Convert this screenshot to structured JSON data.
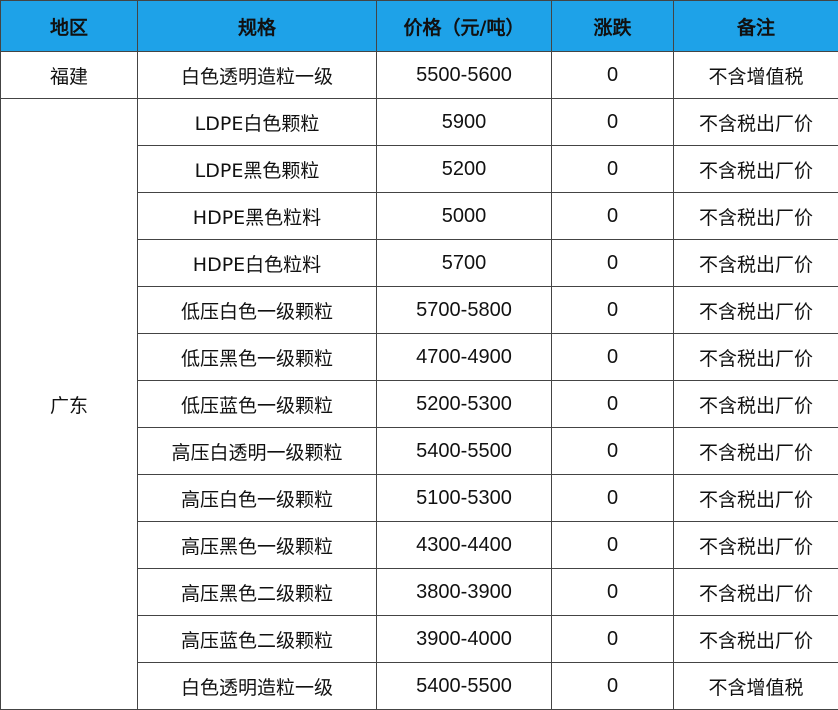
{
  "table": {
    "headers": [
      "地区",
      "规格",
      "价格（元/吨）",
      "涨跌",
      "备注"
    ],
    "groups": [
      {
        "region": "福建",
        "rows": [
          [
            "白色透明造粒一级",
            "5500-5600",
            0,
            "不含增值税"
          ]
        ]
      },
      {
        "region": "广东",
        "rows": [
          [
            "LDPE白色颗粒",
            "5900",
            0,
            "不含税出厂价"
          ],
          [
            "LDPE黑色颗粒",
            "5200",
            0,
            "不含税出厂价"
          ],
          [
            "HDPE黑色粒料",
            "5000",
            0,
            "不含税出厂价"
          ],
          [
            "HDPE白色粒料",
            "5700",
            0,
            "不含税出厂价"
          ],
          [
            "低压白色一级颗粒",
            "5700-5800",
            0,
            "不含税出厂价"
          ],
          [
            "低压黑色一级颗粒",
            "4700-4900",
            0,
            "不含税出厂价"
          ],
          [
            "低压蓝色一级颗粒",
            "5200-5300",
            0,
            "不含税出厂价"
          ],
          [
            "高压白透明一级颗粒",
            "5400-5500",
            0,
            "不含税出厂价"
          ],
          [
            "高压白色一级颗粒",
            "5100-5300",
            0,
            "不含税出厂价"
          ],
          [
            "高压黑色一级颗粒",
            "4300-4400",
            0,
            "不含税出厂价"
          ],
          [
            "高压黑色二级颗粒",
            "3800-3900",
            0,
            "不含税出厂价"
          ],
          [
            "高压蓝色二级颗粒",
            "3900-4000",
            0,
            "不含税出厂价"
          ],
          [
            "白色透明造粒一级",
            "5400-5500",
            0,
            "不含增值税"
          ]
        ]
      }
    ]
  }
}
